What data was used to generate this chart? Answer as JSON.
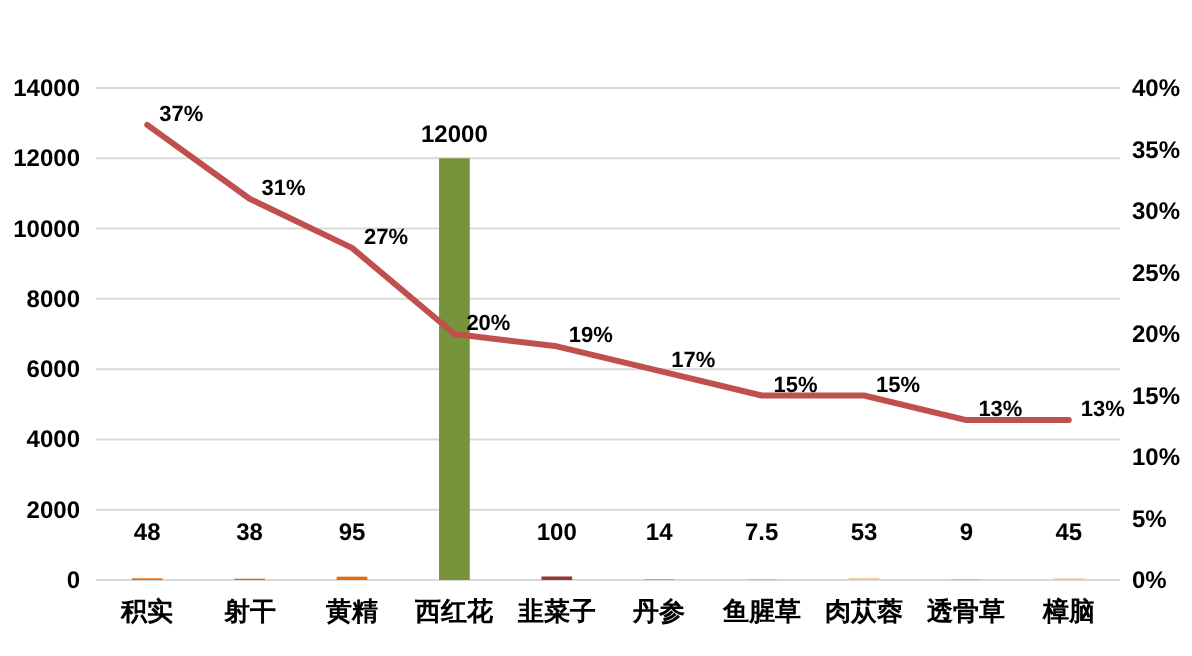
{
  "chart_data": {
    "type": "bar",
    "categories": [
      "积实",
      "射干",
      "黄精",
      "西红花",
      "韭菜子",
      "丹参",
      "鱼腥草",
      "肉苁蓉",
      "透骨草",
      "樟脑"
    ],
    "series": [
      {
        "values": [
          48,
          38,
          95,
          12000,
          100,
          14,
          7.5,
          53,
          9,
          45
        ],
        "colors": [
          "#e46c0a",
          "#e46c0a",
          "#e46c0a",
          "#77933c",
          "#953735",
          "#e46c0a",
          "#e46c0a",
          "#fac090",
          "#e46c0a",
          "#fac090"
        ]
      },
      {
        "type": "line",
        "axis": "y2",
        "color": "#c0504d",
        "values": [
          37,
          31,
          27,
          20,
          19,
          17,
          15,
          15,
          13,
          13
        ],
        "value_labels": [
          "37%",
          "31%",
          "27%",
          "20%",
          "19%",
          "17%",
          "15%",
          "15%",
          "13%",
          "13%"
        ]
      }
    ],
    "ylim": [
      0,
      14000
    ],
    "yticks": [
      0,
      2000,
      4000,
      6000,
      8000,
      10000,
      12000,
      14000
    ],
    "y2lim": [
      0,
      40
    ],
    "y2ticks": [
      {
        "value": 0,
        "label": "0%"
      },
      {
        "value": 5,
        "label": "5%"
      },
      {
        "value": 10,
        "label": "10%"
      },
      {
        "value": 15,
        "label": "15%"
      },
      {
        "value": 20,
        "label": "20%"
      },
      {
        "value": 25,
        "label": "25%"
      },
      {
        "value": 30,
        "label": "30%"
      },
      {
        "value": 35,
        "label": "35%"
      },
      {
        "value": 40,
        "label": "40%"
      }
    ],
    "grid": "y",
    "data_labels": true
  }
}
